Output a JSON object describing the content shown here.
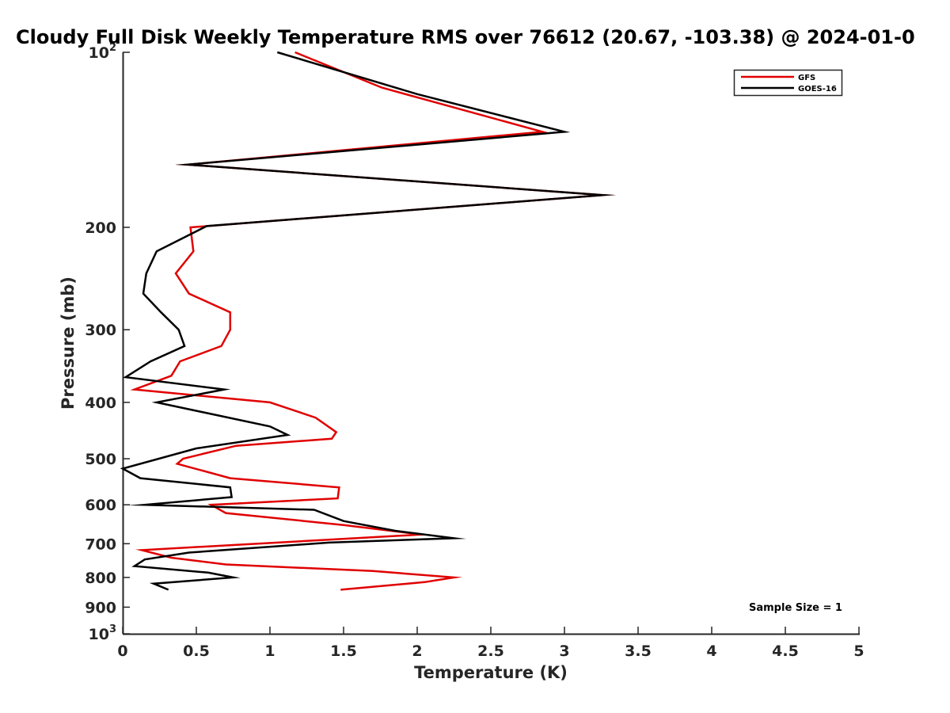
{
  "chart_data": {
    "type": "line",
    "title": "Cloudy Full Disk Weekly Temperature RMS over 76612 (20.67, -103.38) @ 2024-01-0",
    "xlabel": "Temperature (K)",
    "ylabel": "Pressure (mb)",
    "xlim": [
      0,
      5
    ],
    "ylim": [
      100,
      1000
    ],
    "y_scale": "log",
    "y_reversed": true,
    "grid": false,
    "legend_position": "top-right",
    "x_ticks": [
      {
        "value": 0,
        "label": "0"
      },
      {
        "value": 0.5,
        "label": "0.5"
      },
      {
        "value": 1,
        "label": "1"
      },
      {
        "value": 1.5,
        "label": "1.5"
      },
      {
        "value": 2,
        "label": "2"
      },
      {
        "value": 2.5,
        "label": "2.5"
      },
      {
        "value": 3,
        "label": "3"
      },
      {
        "value": 3.5,
        "label": "3.5"
      },
      {
        "value": 4,
        "label": "4"
      },
      {
        "value": 4.5,
        "label": "4.5"
      },
      {
        "value": 5,
        "label": "5"
      }
    ],
    "y_ticks": [
      {
        "value": 100,
        "base": "10",
        "exp": "2"
      },
      {
        "value": 200,
        "label": "200"
      },
      {
        "value": 300,
        "label": "300"
      },
      {
        "value": 400,
        "label": "400"
      },
      {
        "value": 500,
        "label": "500"
      },
      {
        "value": 600,
        "label": "600"
      },
      {
        "value": 700,
        "label": "700"
      },
      {
        "value": 800,
        "label": "800"
      },
      {
        "value": 900,
        "label": "900"
      },
      {
        "value": 1000,
        "base": "10",
        "exp": "3"
      }
    ],
    "annotation": "Sample Size = 1",
    "series": [
      {
        "name": "GFS",
        "color": "#e00000",
        "points": [
          [
            1.17,
            100
          ],
          [
            1.76,
            115
          ],
          [
            2.85,
            137
          ],
          [
            0.44,
            156
          ],
          [
            3.26,
            176
          ],
          [
            0.46,
            200
          ],
          [
            0.48,
            220
          ],
          [
            0.36,
            240
          ],
          [
            0.45,
            260
          ],
          [
            0.73,
            280
          ],
          [
            0.73,
            300
          ],
          [
            0.67,
            320
          ],
          [
            0.39,
            340
          ],
          [
            0.33,
            360
          ],
          [
            0.08,
            380
          ],
          [
            1.0,
            400
          ],
          [
            1.31,
            425
          ],
          [
            1.45,
            450
          ],
          [
            1.42,
            462
          ],
          [
            0.77,
            475
          ],
          [
            0.41,
            500
          ],
          [
            0.37,
            510
          ],
          [
            0.73,
            540
          ],
          [
            1.47,
            560
          ],
          [
            1.46,
            585
          ],
          [
            0.6,
            600
          ],
          [
            0.7,
            620
          ],
          [
            1.5,
            650
          ],
          [
            2.03,
            675
          ],
          [
            0.13,
            718
          ],
          [
            0.33,
            740
          ],
          [
            0.7,
            760
          ],
          [
            1.7,
            780
          ],
          [
            2.25,
            800
          ],
          [
            2.05,
            815
          ],
          [
            1.48,
            840
          ]
        ]
      },
      {
        "name": "GOES-16",
        "color": "#000000",
        "points": [
          [
            1.05,
            100
          ],
          [
            2.0,
            118
          ],
          [
            3.0,
            137
          ],
          [
            0.44,
            156
          ],
          [
            3.26,
            176
          ],
          [
            0.57,
            199
          ],
          [
            0.23,
            220
          ],
          [
            0.16,
            240
          ],
          [
            0.14,
            260
          ],
          [
            0.26,
            280
          ],
          [
            0.38,
            300
          ],
          [
            0.42,
            320
          ],
          [
            0.19,
            340
          ],
          [
            0.02,
            362
          ],
          [
            0.69,
            380
          ],
          [
            0.23,
            400
          ],
          [
            1.0,
            440
          ],
          [
            1.12,
            455
          ],
          [
            0.5,
            480
          ],
          [
            0.0,
            520
          ],
          [
            0.12,
            540
          ],
          [
            0.73,
            560
          ],
          [
            0.74,
            582
          ],
          [
            0.15,
            600
          ],
          [
            1.3,
            612
          ],
          [
            1.5,
            640
          ],
          [
            1.85,
            665
          ],
          [
            2.25,
            685
          ],
          [
            1.4,
            697
          ],
          [
            0.45,
            725
          ],
          [
            0.15,
            745
          ],
          [
            0.08,
            765
          ],
          [
            0.58,
            785
          ],
          [
            0.75,
            800
          ],
          [
            0.21,
            820
          ],
          [
            0.31,
            840
          ]
        ]
      }
    ]
  }
}
